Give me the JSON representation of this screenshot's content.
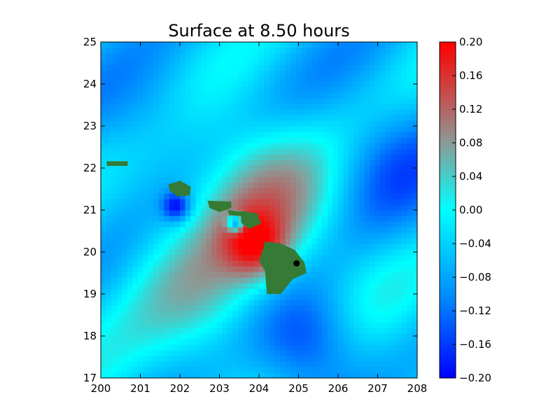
{
  "chart_data": {
    "type": "heatmap",
    "title": "Surface at 8.50 hours",
    "xlabel": "",
    "ylabel": "",
    "xlim": [
      200,
      208
    ],
    "ylim": [
      17,
      25
    ],
    "x_ticks": [
      "200",
      "201",
      "202",
      "203",
      "204",
      "205",
      "206",
      "207",
      "208"
    ],
    "y_ticks": [
      "17",
      "18",
      "19",
      "20",
      "21",
      "22",
      "23",
      "24",
      "25"
    ],
    "colorbar": {
      "range": [
        -0.2,
        0.2
      ],
      "ticks": [
        "0.20",
        "0.16",
        "0.12",
        "0.08",
        "0.04",
        "0.00",
        "−0.04",
        "−0.08",
        "−0.12",
        "−0.16",
        "−0.20"
      ],
      "stops": [
        {
          "value": -0.2,
          "color": "#0000ff"
        },
        {
          "value": -0.1,
          "color": "#0090ff"
        },
        {
          "value": 0.0,
          "color": "#00ffff"
        },
        {
          "value": 0.08,
          "color": "#8c9a96"
        },
        {
          "value": 0.14,
          "color": "#c84a4a"
        },
        {
          "value": 0.2,
          "color": "#ff0000"
        }
      ]
    },
    "field_features": [
      {
        "x": 203.9,
        "y": 20.2,
        "value": 0.2,
        "spread": 0.55
      },
      {
        "x": 204.2,
        "y": 21.4,
        "value": 0.1,
        "spread": 1.2
      },
      {
        "x": 202.5,
        "y": 19.0,
        "value": 0.08,
        "spread": 1.4
      },
      {
        "x": 205.2,
        "y": 17.9,
        "value": -0.14,
        "spread": 1.0
      },
      {
        "x": 207.4,
        "y": 22.0,
        "value": -0.09,
        "spread": 1.1
      },
      {
        "x": 201.0,
        "y": 23.5,
        "value": -0.08,
        "spread": 1.3
      },
      {
        "x": 201.9,
        "y": 21.1,
        "value": -0.16,
        "spread": 0.25
      },
      {
        "x": 203.4,
        "y": 20.7,
        "value": -0.18,
        "spread": 0.15
      }
    ],
    "land_color": "#357a35",
    "marker": {
      "x": 204.95,
      "y": 19.73,
      "color": "#000000"
    }
  }
}
